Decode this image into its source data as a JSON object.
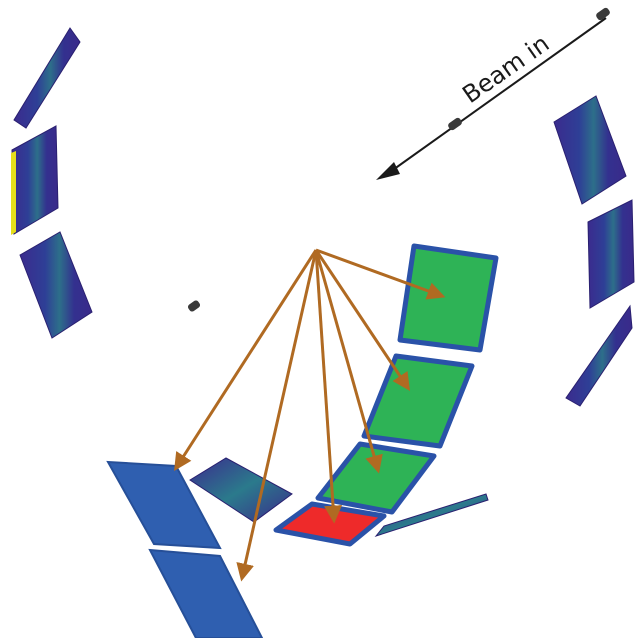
{
  "labels": {
    "beam": "Beam in"
  },
  "colors": {
    "detector_blue": "#2f5fb0",
    "detector_green": "#2eb356",
    "detector_red": "#ee2a2a",
    "detector_edge": "#2a52a8",
    "scintillator_dark": "#3a2a8c",
    "scintillator_teal": "#2b7a8c",
    "highlight_yellow": "#e6df1a",
    "track_arrow": "#b06a22",
    "beam_arrow": "#1a1a1a"
  },
  "legend": []
}
